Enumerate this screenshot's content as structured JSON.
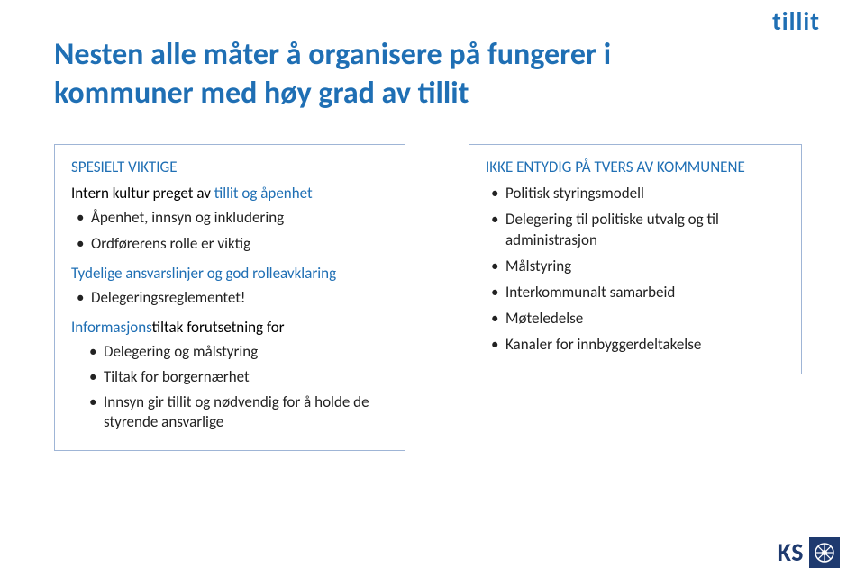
{
  "colors": {
    "blue": "#1f6fb4",
    "title_blue": "#1f6fb4",
    "border": "#9fb5d6",
    "ks_navy": "#1e3a6f",
    "text": "#222222",
    "bg": "#ffffff"
  },
  "top_logo": "tillit",
  "title": "Nesten alle måter å organisere på fungerer i kommuner med høy grad av tillit",
  "left_column": {
    "header": "SPESIELT VIKTIGE",
    "sub_header_html": "Intern kultur preget av <span class='blue'>tillit og åpenhet</span>",
    "bullets_top": [
      "Åpenhet, innsyn og inkludering",
      "Ordførerens rolle er viktig"
    ],
    "subtitle1": "Tydelige ansvarslinjer og god rolleavklaring",
    "bullets_mid": [
      "Delegeringsreglementet!"
    ],
    "subtitle2_html": "<span class='blue'>Informasjons</span>tiltak forutsetning for",
    "bullets_bottom": [
      "Delegering og målstyring",
      "Tiltak for borgernærhet",
      "Innsyn gir tillit og nødvendig for å holde de styrende ansvarlige"
    ]
  },
  "right_column": {
    "header": "IKKE ENTYDIG PÅ TVERS AV KOMMUNENE",
    "bullets": [
      "Politisk styringsmodell",
      "Delegering til politiske utvalg og til administrasjon",
      "Målstyring",
      "Interkommunalt samarbeid",
      "Møteledelse",
      "Kanaler for innbyggerdeltakelse"
    ]
  },
  "bottom_logo": {
    "text": "KS"
  }
}
